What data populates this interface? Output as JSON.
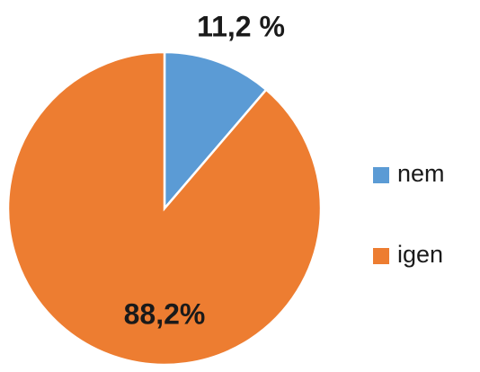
{
  "chart_data": {
    "type": "pie",
    "categories": [
      "nem",
      "igen"
    ],
    "values": [
      11.2,
      88.2
    ],
    "value_labels": [
      "11,2 %",
      "88,2%"
    ],
    "colors": [
      "#5b9bd5",
      "#ed7d31"
    ],
    "legend": "right"
  }
}
